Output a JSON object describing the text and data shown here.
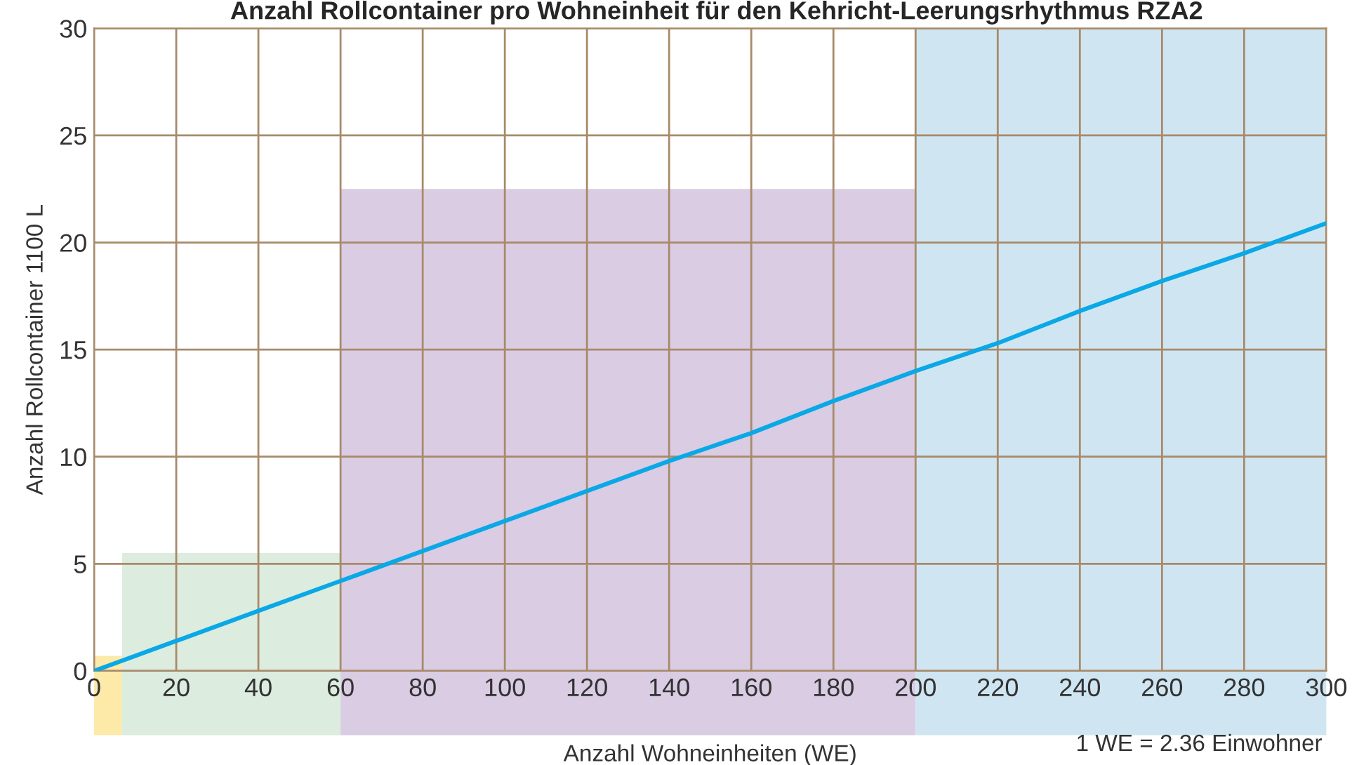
{
  "chart_data": {
    "type": "line",
    "title": "Anzahl Rollcontainer pro Wohneinheit für den Kehricht-Leerungsrhythmus RZA2",
    "xlabel": "Anzahl Wohneinheiten (WE)",
    "ylabel": "Anzahl Rollcontainer 1100 L",
    "annotations": [
      "1 WE = 2.36 Einwohner"
    ],
    "series": [
      {
        "type": "area",
        "color": "#fde9a8",
        "x": [
          0,
          6.8
        ],
        "values": [
          0.7,
          0.7
        ]
      },
      {
        "type": "area",
        "color": "#dcecdf",
        "x": [
          6.8,
          60
        ],
        "values": [
          5.5,
          5.5
        ]
      },
      {
        "type": "area",
        "color": "#d9cce3",
        "x": [
          60,
          200
        ],
        "values": [
          22.5,
          22.5
        ]
      },
      {
        "type": "area",
        "color": "#d0e5f2",
        "x": [
          200,
          300
        ],
        "values": [
          30,
          30
        ]
      },
      {
        "color": "#0aa8e6",
        "x": [
          0,
          20,
          40,
          60,
          80,
          100,
          120,
          140,
          160,
          180,
          200,
          220,
          240,
          260,
          280,
          300
        ],
        "values": [
          0,
          1.4,
          2.8,
          4.2,
          5.6,
          7.0,
          8.4,
          9.8,
          11.1,
          12.6,
          14.0,
          15.3,
          16.8,
          18.2,
          19.5,
          20.9
        ]
      }
    ],
    "xlim": [
      0,
      300
    ],
    "xticks": [
      0,
      20,
      40,
      60,
      80,
      100,
      120,
      140,
      160,
      180,
      200,
      220,
      240,
      260,
      280,
      300
    ],
    "ylim": [
      0,
      30
    ],
    "yticks": [
      0,
      5,
      10,
      15,
      20,
      25,
      30
    ],
    "grid": true,
    "marker": "none",
    "line_style": "solid",
    "legend": false
  }
}
